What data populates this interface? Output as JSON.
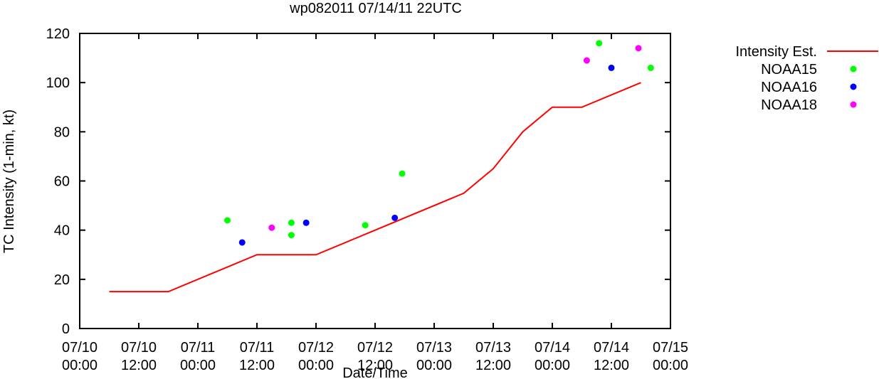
{
  "chart_data": {
    "type": "line",
    "title": "wp082011 07/14/11 22UTC",
    "xlabel": "Date/Time",
    "ylabel": "TC Intensity (1-min, kt)",
    "x_unit": "hours",
    "xlim": [
      0,
      120
    ],
    "ylim": [
      0,
      120
    ],
    "x_ticks": [
      {
        "x": 0,
        "label": [
          "07/10",
          "00:00"
        ]
      },
      {
        "x": 12,
        "label": [
          "07/10",
          "12:00"
        ]
      },
      {
        "x": 24,
        "label": [
          "07/11",
          "00:00"
        ]
      },
      {
        "x": 36,
        "label": [
          "07/11",
          "12:00"
        ]
      },
      {
        "x": 48,
        "label": [
          "07/12",
          "00:00"
        ]
      },
      {
        "x": 60,
        "label": [
          "07/12",
          "12:00"
        ]
      },
      {
        "x": 72,
        "label": [
          "07/13",
          "00:00"
        ]
      },
      {
        "x": 84,
        "label": [
          "07/13",
          "12:00"
        ]
      },
      {
        "x": 96,
        "label": [
          "07/14",
          "00:00"
        ]
      },
      {
        "x": 108,
        "label": [
          "07/14",
          "12:00"
        ]
      },
      {
        "x": 120,
        "label": [
          "07/15",
          "00:00"
        ]
      }
    ],
    "y_ticks": [
      0,
      20,
      40,
      60,
      80,
      100,
      120
    ],
    "grid": false,
    "legend_position": "outside-right",
    "series": [
      {
        "name": "Intensity Est.",
        "kind": "line",
        "color": "#ff0000",
        "points": [
          [
            6,
            15
          ],
          [
            18,
            15
          ],
          [
            36,
            30
          ],
          [
            48,
            30
          ],
          [
            60,
            40
          ],
          [
            78,
            55
          ],
          [
            84,
            65
          ],
          [
            90,
            80
          ],
          [
            96,
            90
          ],
          [
            102,
            90
          ],
          [
            114,
            100
          ]
        ]
      },
      {
        "name": "NOAA15",
        "kind": "points",
        "color": "#00ff00",
        "points": [
          [
            30,
            44
          ],
          [
            43,
            43
          ],
          [
            43,
            38
          ],
          [
            58,
            42
          ],
          [
            65.5,
            63
          ],
          [
            105.5,
            116
          ],
          [
            116,
            106
          ]
        ]
      },
      {
        "name": "NOAA16",
        "kind": "points",
        "color": "#0000ff",
        "points": [
          [
            33,
            35
          ],
          [
            46,
            43
          ],
          [
            64,
            45
          ],
          [
            108,
            106
          ]
        ]
      },
      {
        "name": "NOAA18",
        "kind": "points",
        "color": "#ff00ff",
        "points": [
          [
            39,
            41
          ],
          [
            103,
            109
          ],
          [
            113.5,
            114
          ]
        ]
      }
    ]
  }
}
